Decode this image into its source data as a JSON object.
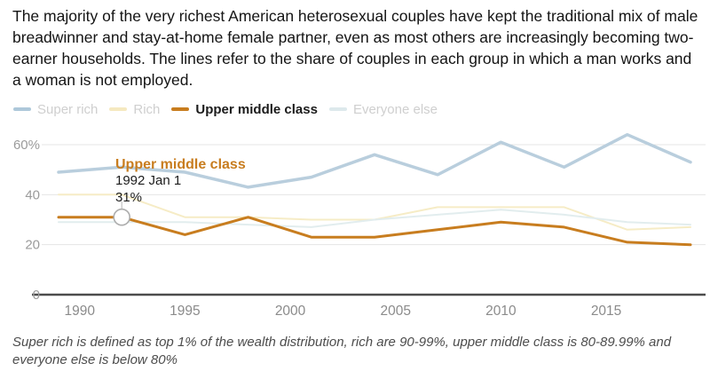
{
  "headline": "The majority of the very richest American heterosexual couples have kept the traditional mix of male breadwinner and stay-at-home female partner, even as most others are increasingly becoming two-earner households. The lines refer to the share of couples in each group in which a man works and a woman is not employed.",
  "legend": {
    "items": [
      {
        "label": "Super rich",
        "color": "#aec8da",
        "active": false
      },
      {
        "label": "Rich",
        "color": "#f5e9c0",
        "active": false
      },
      {
        "label": "Upper middle class",
        "color": "#c87d1f",
        "active": true
      },
      {
        "label": "Everyone else",
        "color": "#dde9ec",
        "active": false
      }
    ]
  },
  "tooltip": {
    "title": "Upper middle class",
    "date": "1992 Jan 1",
    "value": "31%",
    "color": "#c87d1f",
    "marker_year": 1992,
    "marker_value": 31
  },
  "chart_data": {
    "type": "line",
    "x": [
      1989,
      1992,
      1995,
      1998,
      2001,
      2004,
      2007,
      2010,
      2013,
      2016,
      2019
    ],
    "series": [
      {
        "name": "Rich",
        "color": "#f6ecc6",
        "width": 2,
        "values": [
          40,
          40,
          31,
          31,
          30,
          30,
          35,
          35,
          35,
          26,
          27
        ]
      },
      {
        "name": "Everyone else",
        "color": "#e2edee",
        "width": 2,
        "values": [
          29,
          29,
          29,
          28,
          27,
          30,
          32,
          34,
          32,
          29,
          28
        ]
      },
      {
        "name": "Super rich",
        "color": "#b9cedd",
        "width": 3.5,
        "values": [
          49,
          51,
          49,
          43,
          47,
          56,
          48,
          61,
          51,
          64,
          53
        ]
      },
      {
        "name": "Upper middle class",
        "color": "#c87d1f",
        "width": 3,
        "values": [
          31,
          31,
          24,
          31,
          23,
          23,
          26,
          29,
          27,
          21,
          20
        ]
      }
    ],
    "xlim": [
      1989,
      2019
    ],
    "ylim": [
      0,
      60
    ],
    "y_ticks": [
      {
        "value": 0,
        "label": "0"
      },
      {
        "value": 20,
        "label": "20"
      },
      {
        "value": 40,
        "label": "40"
      },
      {
        "value": 60,
        "label": "60%"
      }
    ],
    "x_ticks": [
      {
        "value": 1990,
        "label": "1990"
      },
      {
        "value": 1995,
        "label": "1995"
      },
      {
        "value": 2000,
        "label": "2000"
      },
      {
        "value": 2005,
        "label": "2005"
      },
      {
        "value": 2010,
        "label": "2010"
      },
      {
        "value": 2015,
        "label": "2015"
      }
    ],
    "grid": true,
    "legend_position": "top"
  },
  "footnote": "Super rich is defined as top 1% of the wealth distribution, rich are 90-99%, upper middle class is 80-89.99% and everyone else is below 80%"
}
